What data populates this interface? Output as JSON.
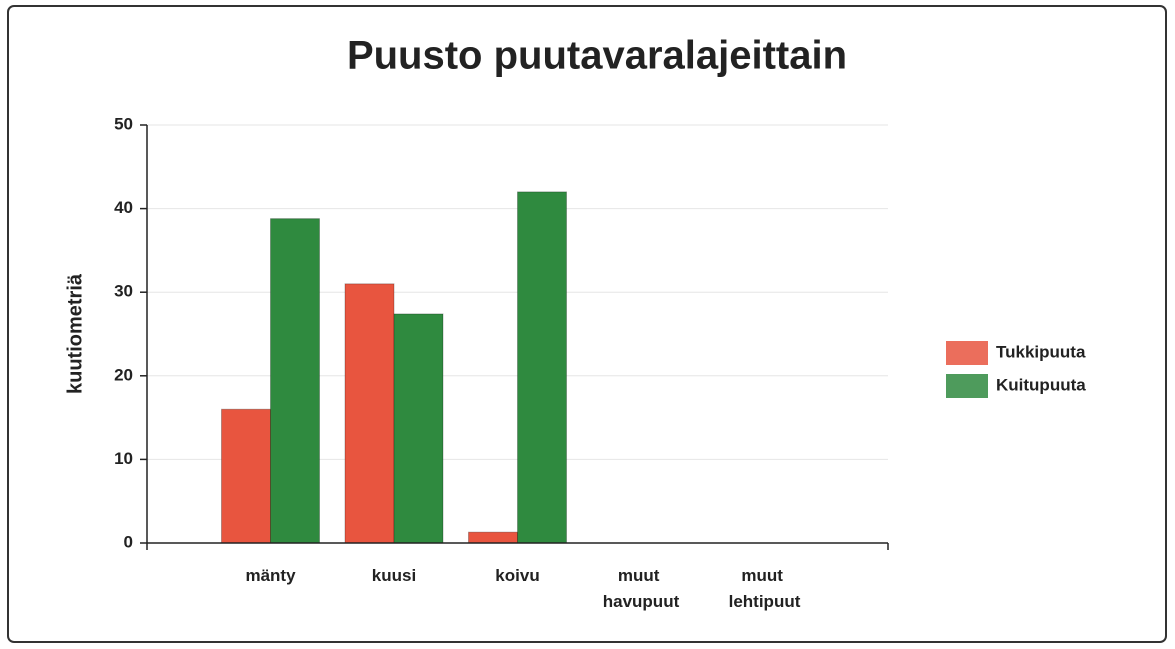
{
  "chart_data": {
    "type": "bar",
    "title": "Puusto puutavaralajeittain",
    "y_label": "kuutiometriä",
    "categories": [
      "mänty",
      "kuusi",
      "koivu",
      "muut havupuut",
      "muut lehtipuut"
    ],
    "series": [
      {
        "name": "Tukkipuuta",
        "color": "#e8553f",
        "values": [
          16,
          31,
          1.3,
          0,
          0
        ]
      },
      {
        "name": "Kuitupuuta",
        "color": "#2f8a3f",
        "values": [
          38.8,
          27.4,
          42,
          0,
          0
        ]
      }
    ],
    "ylim": [
      0,
      50
    ],
    "yticks": [
      0,
      10,
      20,
      30,
      40,
      50
    ],
    "grid": true,
    "legend": "right"
  }
}
